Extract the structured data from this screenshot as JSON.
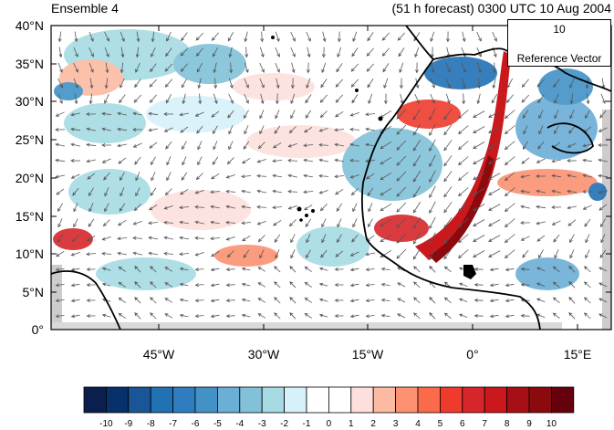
{
  "header": {
    "left_title": "Ensemble 4",
    "right_title": "(51 h forecast) 0300 UTC 10 Aug 2004"
  },
  "map": {
    "lat_labels": [
      "40°N",
      "35°N",
      "30°N",
      "25°N",
      "20°N",
      "15°N",
      "10°N",
      "5°N",
      "0°"
    ],
    "lon_labels": [
      "45°W",
      "30°W",
      "15°W",
      "0°",
      "15°E"
    ],
    "extent": {
      "lon_min": -57,
      "lon_max": 19,
      "lat_min": 0,
      "lat_max": 40
    },
    "colors": {
      "land_border": "#000000",
      "vector": "#555555",
      "missing": "#cccccc"
    }
  },
  "reference_vector": {
    "magnitude": "10",
    "label": "Reference Vector"
  },
  "colorbar": {
    "labels": [
      "-10",
      "-9",
      "-8",
      "-7",
      "-6",
      "-5",
      "-4",
      "-3",
      "-2",
      "-1",
      "0",
      "1",
      "2",
      "3",
      "4",
      "5",
      "6",
      "7",
      "8",
      "9",
      "10"
    ],
    "colors": [
      "#0b1f4e",
      "#08306b",
      "#1a5597",
      "#2171b5",
      "#2f7cbf",
      "#4292c6",
      "#6baed6",
      "#81c1d9",
      "#a6dbe4",
      "#d7f1fa",
      "#ffffff",
      "#ffffff",
      "#fde0dd",
      "#fcbba1",
      "#fc9272",
      "#fb6a4a",
      "#ef3b2c",
      "#d7262a",
      "#cb181d",
      "#a50f15",
      "#8b0a0e",
      "#67000d"
    ]
  }
}
